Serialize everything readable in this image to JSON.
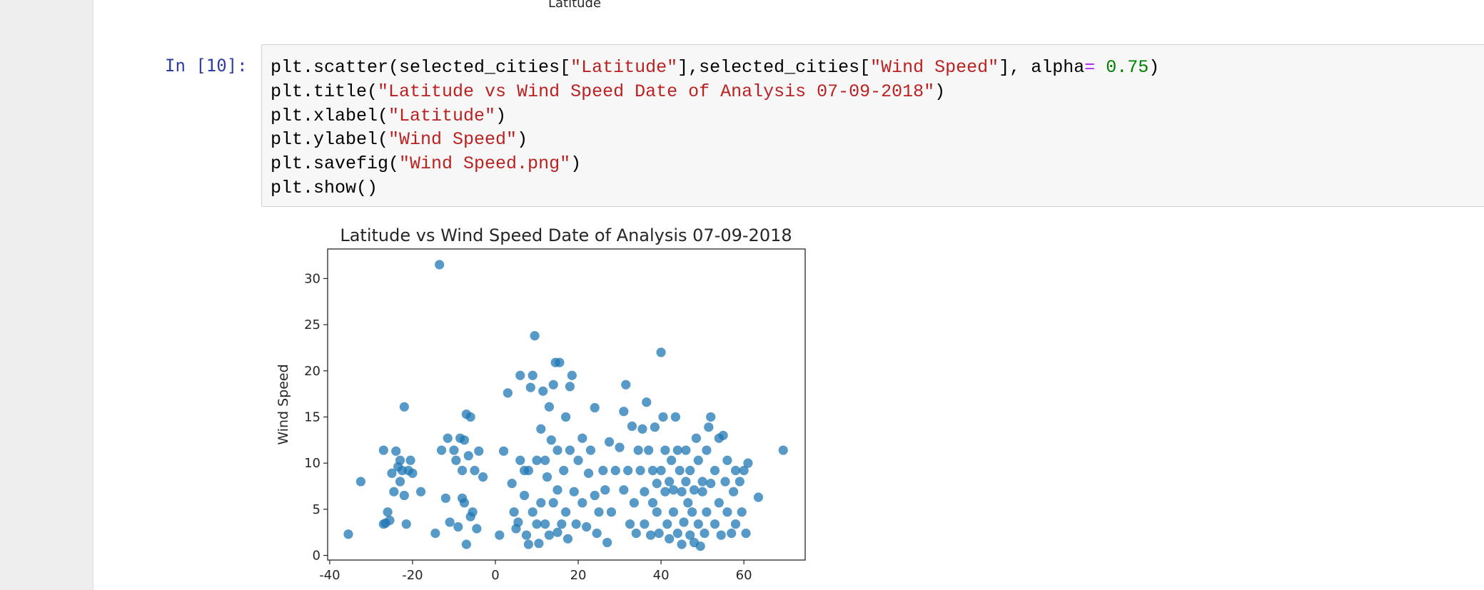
{
  "previous_output": {
    "xlabel": "Latitude"
  },
  "cell": {
    "prompt": "In [10]:",
    "lines": [
      [
        {
          "text": "plt.scatter(selected_cities[",
          "color": "#000000"
        },
        {
          "text": "\"Latitude\"",
          "color": "#ba2121"
        },
        {
          "text": "],selected_cities[",
          "color": "#000000"
        },
        {
          "text": "\"Wind Speed\"",
          "color": "#ba2121"
        },
        {
          "text": "], alpha",
          "color": "#000000"
        },
        {
          "text": "=",
          "color": "#aa22ff"
        },
        {
          "text": " 0.75",
          "color": "#008000"
        },
        {
          "text": ")",
          "color": "#000000"
        }
      ],
      [
        {
          "text": "plt.title(",
          "color": "#000000"
        },
        {
          "text": "\"Latitude vs Wind Speed Date of Analysis 07-09-2018\"",
          "color": "#ba2121"
        },
        {
          "text": ")",
          "color": "#000000"
        }
      ],
      [
        {
          "text": "plt.xlabel(",
          "color": "#000000"
        },
        {
          "text": "\"Latitude\"",
          "color": "#ba2121"
        },
        {
          "text": ")",
          "color": "#000000"
        }
      ],
      [
        {
          "text": "plt.ylabel(",
          "color": "#000000"
        },
        {
          "text": "\"Wind Speed\"",
          "color": "#ba2121"
        },
        {
          "text": ")",
          "color": "#000000"
        }
      ],
      [
        {
          "text": "plt.savefig(",
          "color": "#000000"
        },
        {
          "text": "\"Wind Speed.png\"",
          "color": "#ba2121"
        },
        {
          "text": ")",
          "color": "#000000"
        }
      ],
      [
        {
          "text": "plt.show()",
          "color": "#000000"
        }
      ]
    ]
  },
  "chart_data": {
    "type": "scatter",
    "title": "Latitude vs Wind Speed Date of Analysis 07-09-2018",
    "ylabel": "Wind Speed",
    "color": "#1f77b4",
    "alpha": 0.75,
    "xlim": [
      -40.5,
      74.8
    ],
    "xticks": [
      -40,
      -20,
      0,
      20,
      40,
      60
    ],
    "ylim": [
      -0.5,
      33.2
    ],
    "yticks": [
      0,
      5,
      10,
      15,
      20,
      25,
      30
    ],
    "x": [
      -35.5,
      -32.5,
      -27,
      -27,
      -26.5,
      -26,
      -25.5,
      -25,
      -24.5,
      -24,
      -23.5,
      -23,
      -23,
      -22.5,
      -22,
      -22,
      -21.5,
      -21,
      -20.5,
      -20,
      -18,
      -14.5,
      -13.5,
      -13,
      -12,
      -11.5,
      -11,
      -10,
      -9.5,
      -9,
      -8.5,
      -8,
      -8,
      -7.5,
      -7.5,
      -7,
      -7,
      -6.5,
      -6,
      -6,
      -5.5,
      -5,
      -4.5,
      -4,
      -3,
      1,
      2,
      3,
      4,
      4.5,
      5,
      5.5,
      6,
      6,
      7,
      7,
      7.5,
      8,
      8,
      8.5,
      9,
      9,
      9.5,
      10,
      10,
      10.5,
      11,
      11,
      11.5,
      12,
      12,
      12.5,
      13,
      13,
      13.5,
      14,
      14,
      14.5,
      15,
      15,
      15,
      15.5,
      16,
      16.5,
      17,
      17,
      17.5,
      18,
      18,
      18.5,
      19,
      19.5,
      20,
      21,
      21,
      22,
      22.5,
      23,
      24,
      24,
      24.5,
      25,
      26,
      26.5,
      27,
      27.5,
      28,
      29,
      30,
      31,
      31,
      31.5,
      32,
      32.5,
      33,
      33.5,
      34,
      34.5,
      35,
      35.5,
      36,
      36,
      36.5,
      37,
      37.5,
      38,
      38,
      38.5,
      39,
      39,
      39.5,
      40,
      40,
      40.5,
      41,
      41,
      41.5,
      42,
      42,
      42.5,
      43,
      43,
      43.5,
      44,
      44,
      44.5,
      45,
      45,
      45.5,
      46,
      46,
      46.5,
      47,
      47,
      47.5,
      48,
      48,
      48.5,
      49,
      49,
      49.5,
      50,
      50,
      50.5,
      51,
      51,
      51.5,
      52,
      52,
      53,
      53,
      54,
      54,
      54.5,
      55,
      55.5,
      56,
      56,
      57,
      57.5,
      58,
      58,
      59,
      59.5,
      60,
      60.5,
      61,
      63.5,
      69.5
    ],
    "values": [
      2.3,
      8,
      11.4,
      3.4,
      3.5,
      4.7,
      3.8,
      8.9,
      6.9,
      11.3,
      9.6,
      10.3,
      8,
      9.2,
      16.1,
      6.5,
      3.4,
      9.2,
      10.3,
      8.9,
      6.9,
      2.4,
      31.5,
      11.4,
      6.2,
      12.7,
      3.6,
      11.4,
      10.3,
      3.1,
      12.7,
      9.2,
      6.2,
      12.5,
      5.7,
      1.2,
      15.3,
      10.8,
      4.2,
      15,
      4.7,
      9.2,
      2.9,
      11.3,
      8.5,
      2.2,
      11.3,
      17.6,
      7.8,
      4.7,
      2.9,
      3.6,
      10.3,
      19.5,
      9.2,
      6.5,
      2.2,
      1.2,
      9.2,
      18.2,
      19.5,
      4.7,
      23.8,
      10.3,
      3.4,
      1.3,
      13.7,
      5.7,
      17.8,
      10.3,
      3.4,
      8.5,
      16.1,
      2.2,
      12.5,
      18.5,
      5.7,
      20.9,
      11.4,
      7.1,
      2.5,
      20.9,
      3.4,
      9.2,
      15,
      4.7,
      1.8,
      11.4,
      18.3,
      19.5,
      6.9,
      3.4,
      10.3,
      12.7,
      5.7,
      3.1,
      8.9,
      11.4,
      16,
      6.5,
      2.4,
      4.7,
      9.2,
      7.1,
      1.4,
      12.3,
      4.7,
      9.2,
      11.7,
      15.6,
      7.1,
      18.5,
      9.2,
      3.4,
      14,
      5.7,
      2.4,
      11.4,
      9.2,
      13.7,
      6.9,
      3.4,
      16.6,
      11.4,
      2.2,
      9.2,
      5.7,
      13.9,
      7.8,
      4.7,
      2.4,
      9.2,
      22,
      15,
      11.4,
      6.9,
      3.4,
      8,
      1.8,
      10.3,
      4.7,
      7.1,
      15,
      11.4,
      2.4,
      9.2,
      6.9,
      1.2,
      3.6,
      8,
      11.4,
      5.7,
      2.2,
      9.2,
      4.7,
      1.4,
      7.1,
      12.7,
      3.4,
      10.3,
      1,
      6.9,
      8,
      2.4,
      11.4,
      4.7,
      13.9,
      15,
      7.8,
      3.4,
      9.2,
      12.7,
      5.7,
      2.2,
      13,
      8,
      4.7,
      10.3,
      2.4,
      6.9,
      9.2,
      3.4,
      8,
      4.7,
      9.2,
      2.4,
      10,
      6.3,
      11.4
    ]
  }
}
